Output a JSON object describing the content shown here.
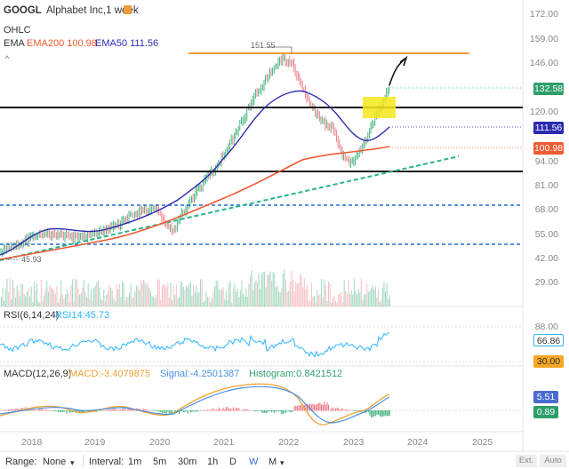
{
  "header": {
    "symbol": "GOOGL",
    "name": "Alphabet Inc,1 week",
    "type_label": "OHLC",
    "ema_label": "EMA",
    "ema200_label": "EMA200 100.98",
    "ema50_label": "EMA50 111.56",
    "collapse_glyph": "^"
  },
  "price_axis": {
    "ticks": [
      "172.00",
      "159.00",
      "146.00",
      "132.58",
      "120.00",
      "111.56",
      "100.98",
      "94.00",
      "81.00",
      "68.00",
      "55.00",
      "42.00",
      "29.00"
    ],
    "last_price": "132.58",
    "ema50_value": "111.56",
    "ema200_value": "100.98"
  },
  "annotations": {
    "high_label": "151.55",
    "low_label": "45.93"
  },
  "rsi": {
    "label": "RSI(6,14,24)",
    "value_label": "RSI14:45.73",
    "ticks": [
      "88.00",
      "66.86",
      "30.00"
    ],
    "current": "66.86",
    "low": "30.00"
  },
  "macd": {
    "label": "MACD(12,26,9)",
    "macd_label": "MACD:-3.4079875",
    "signal_label": "Signal:-4.2501387",
    "hist_label": "Histogram:0.8421512",
    "value1": "5.51",
    "value2": "0.89"
  },
  "x_axis": [
    "2018",
    "2019",
    "2020",
    "2021",
    "2022",
    "2023",
    "2024",
    "2025"
  ],
  "toolbar": {
    "range_label": "Range:",
    "range_value": "None",
    "interval_label": "Interval:",
    "intervals": [
      "1m",
      "5m",
      "30m",
      "1h",
      "D",
      "W",
      "M"
    ],
    "active_interval": "W",
    "ext_label": "Ext.",
    "auto_label": "Auto"
  },
  "colors": {
    "ema200": "#ef5a32",
    "ema50": "#2a2ab0",
    "resistance": "#f29a3a",
    "support": "#1c1c1c",
    "dashed": "#1f6bd0",
    "trend": "#27b58e",
    "up": "#3bb07a",
    "down": "#ee7a85",
    "highlight": "#f5e61b",
    "macd": "#f0a030",
    "signal": "#4a90e2"
  }
}
